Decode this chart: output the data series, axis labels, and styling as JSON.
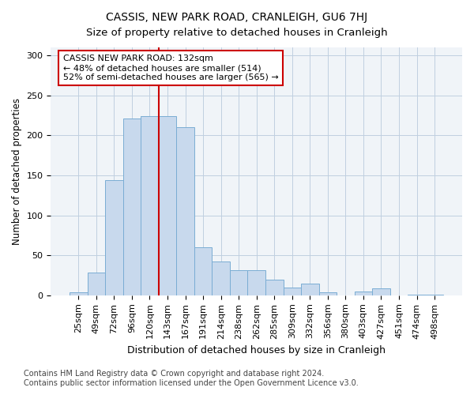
{
  "title": "CASSIS, NEW PARK ROAD, CRANLEIGH, GU6 7HJ",
  "subtitle": "Size of property relative to detached houses in Cranleigh",
  "xlabel": "Distribution of detached houses by size in Cranleigh",
  "ylabel": "Number of detached properties",
  "bar_labels": [
    "25sqm",
    "49sqm",
    "72sqm",
    "96sqm",
    "120sqm",
    "143sqm",
    "167sqm",
    "191sqm",
    "214sqm",
    "238sqm",
    "262sqm",
    "285sqm",
    "309sqm",
    "332sqm",
    "356sqm",
    "380sqm",
    "403sqm",
    "427sqm",
    "451sqm",
    "474sqm",
    "498sqm"
  ],
  "bar_values": [
    4,
    28,
    144,
    221,
    224,
    224,
    210,
    60,
    42,
    31,
    31,
    20,
    10,
    15,
    4,
    0,
    5,
    9,
    0,
    1,
    1
  ],
  "bar_color": "#c8d9ed",
  "bar_edge_color": "#7aadd4",
  "vline_color": "#cc0000",
  "vline_index": 5,
  "annotation_text": "CASSIS NEW PARK ROAD: 132sqm\n← 48% of detached houses are smaller (514)\n52% of semi-detached houses are larger (565) →",
  "annotation_box_color": "#ffffff",
  "annotation_box_edge_color": "#cc0000",
  "footer_line1": "Contains HM Land Registry data © Crown copyright and database right 2024.",
  "footer_line2": "Contains public sector information licensed under the Open Government Licence v3.0.",
  "bg_color": "#ffffff",
  "plot_bg_color": "#f0f4f8",
  "ylim": [
    0,
    310
  ],
  "yticks": [
    0,
    50,
    100,
    150,
    200,
    250,
    300
  ],
  "title_fontsize": 10,
  "subtitle_fontsize": 9.5,
  "xlabel_fontsize": 9,
  "ylabel_fontsize": 8.5,
  "tick_fontsize": 8,
  "annotation_fontsize": 8,
  "footer_fontsize": 7
}
